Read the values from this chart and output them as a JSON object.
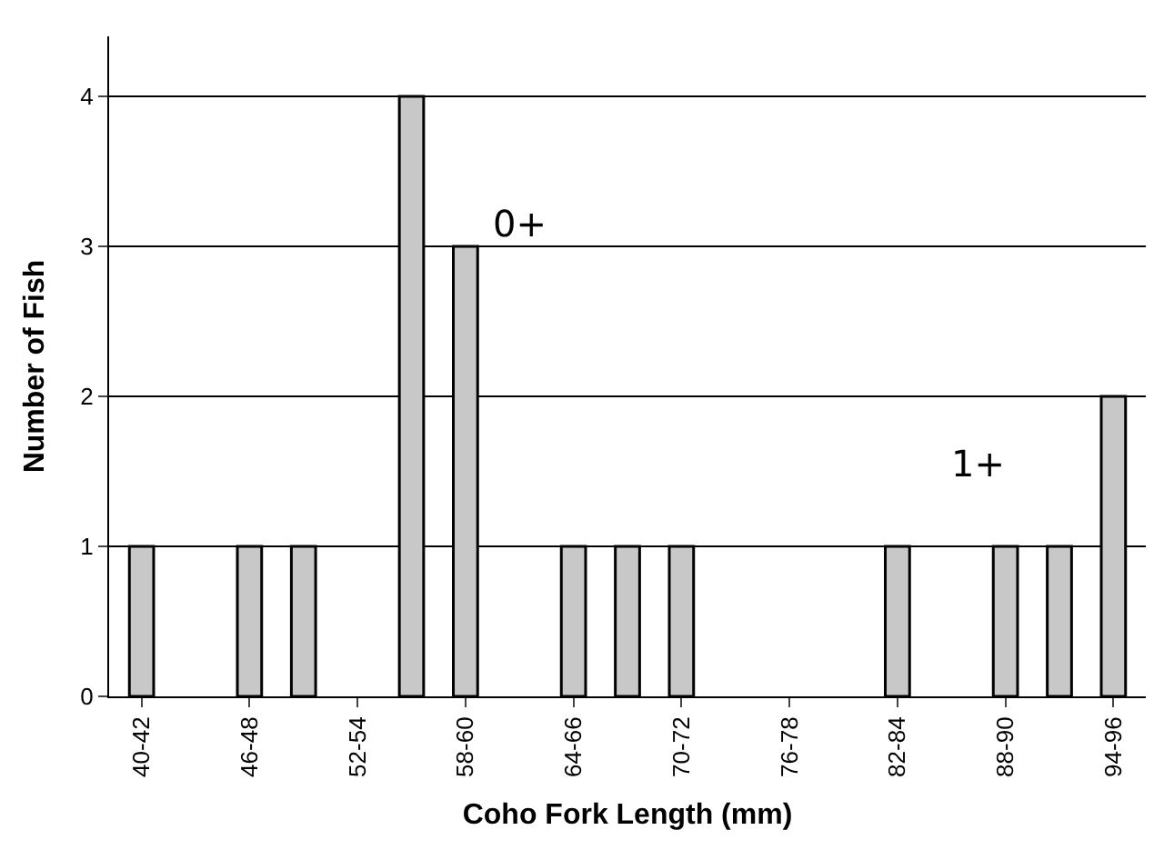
{
  "chart_data": {
    "type": "bar",
    "xlabel": "Coho Fork Length (mm)",
    "ylabel": "Number of Fish",
    "categories": [
      "40-42",
      null,
      "46-48",
      null,
      "52-54",
      null,
      "58-60",
      null,
      "64-66",
      null,
      "70-72",
      null,
      "76-78",
      null,
      "82-84",
      null,
      "88-90",
      null,
      "94-96"
    ],
    "values": [
      1,
      0,
      1,
      1,
      0,
      4,
      3,
      0,
      1,
      1,
      1,
      0,
      0,
      0,
      1,
      0,
      1,
      1,
      2
    ],
    "color": "#c8c8c8",
    "ylim": [
      0,
      4.4
    ],
    "yticks": [
      0,
      1,
      2,
      3,
      4
    ],
    "grid": "y",
    "annotations": [
      "0+",
      "1+"
    ]
  }
}
